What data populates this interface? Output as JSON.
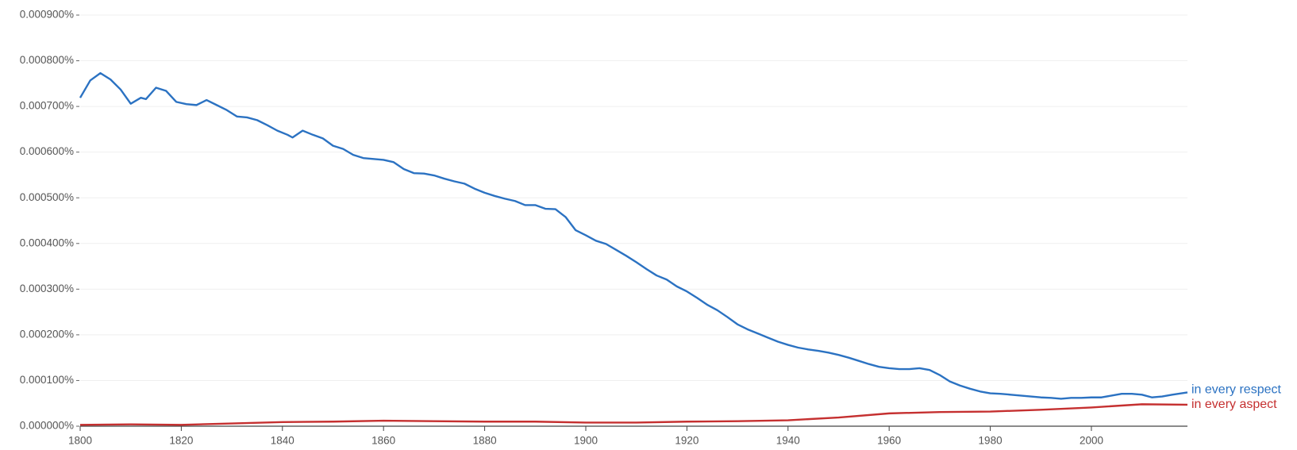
{
  "chart_data": {
    "type": "line",
    "xlim": [
      1800,
      2019
    ],
    "xticks": [
      1800,
      1820,
      1840,
      1860,
      1880,
      1900,
      1920,
      1940,
      1960,
      1980,
      2000
    ],
    "ylim": [
      0,
      0.0009
    ],
    "yticks": [
      {
        "value": 0,
        "label": "0.000000%"
      },
      {
        "value": 0.0001,
        "label": "0.000100%"
      },
      {
        "value": 0.0002,
        "label": "0.000200%"
      },
      {
        "value": 0.0003,
        "label": "0.000300%"
      },
      {
        "value": 0.0004,
        "label": "0.000400%"
      },
      {
        "value": 0.0005,
        "label": "0.000500%"
      },
      {
        "value": 0.0006,
        "label": "0.000600%"
      },
      {
        "value": 0.0007,
        "label": "0.000700%"
      },
      {
        "value": 0.0008,
        "label": "0.000800%"
      },
      {
        "value": 0.0009,
        "label": "0.000900%"
      }
    ],
    "grid": true,
    "series": [
      {
        "name": "in every respect",
        "color": "#2b72c2",
        "x": [
          1800,
          1802,
          1804,
          1806,
          1808,
          1810,
          1812,
          1813,
          1815,
          1817,
          1819,
          1821,
          1823,
          1825,
          1827,
          1829,
          1831,
          1833,
          1835,
          1837,
          1839,
          1841,
          1842,
          1844,
          1846,
          1848,
          1850,
          1852,
          1854,
          1856,
          1858,
          1860,
          1862,
          1864,
          1866,
          1868,
          1870,
          1872,
          1874,
          1876,
          1878,
          1880,
          1882,
          1884,
          1886,
          1888,
          1890,
          1892,
          1894,
          1896,
          1898,
          1900,
          1902,
          1904,
          1906,
          1908,
          1910,
          1912,
          1914,
          1916,
          1918,
          1920,
          1922,
          1924,
          1926,
          1928,
          1930,
          1932,
          1934,
          1936,
          1938,
          1940,
          1942,
          1944,
          1946,
          1948,
          1950,
          1952,
          1954,
          1956,
          1958,
          1960,
          1962,
          1964,
          1966,
          1968,
          1970,
          1972,
          1974,
          1976,
          1978,
          1980,
          1982,
          1984,
          1986,
          1988,
          1990,
          1992,
          1994,
          1996,
          1998,
          2000,
          2002,
          2004,
          2006,
          2008,
          2010,
          2012,
          2014,
          2016,
          2019
        ],
        "values": [
          0.000719,
          0.000757,
          0.000773,
          0.000759,
          0.000737,
          0.000706,
          0.000719,
          0.000716,
          0.000741,
          0.000734,
          0.00071,
          0.000705,
          0.000703,
          0.000714,
          0.000703,
          0.000692,
          0.000678,
          0.000676,
          0.00067,
          0.000659,
          0.000647,
          0.000638,
          0.000632,
          0.000647,
          0.000638,
          0.00063,
          0.000614,
          0.000607,
          0.000594,
          0.000587,
          0.000585,
          0.000583,
          0.000578,
          0.000563,
          0.000554,
          0.000553,
          0.000549,
          0.000542,
          0.000536,
          0.000531,
          0.00052,
          0.000511,
          0.000504,
          0.000498,
          0.000493,
          0.000484,
          0.000484,
          0.000476,
          0.000475,
          0.000458,
          0.000429,
          0.000418,
          0.000406,
          0.000399,
          0.000386,
          0.000373,
          0.000359,
          0.000344,
          0.00033,
          0.000321,
          0.000306,
          0.000295,
          0.000281,
          0.000266,
          0.000254,
          0.000239,
          0.000223,
          0.000212,
          0.000203,
          0.000194,
          0.000185,
          0.000178,
          0.000172,
          0.000168,
          0.000165,
          0.000161,
          0.000156,
          0.00015,
          0.000143,
          0.000136,
          0.00013,
          0.000127,
          0.000125,
          0.000125,
          0.000127,
          0.000123,
          0.000112,
          9.8e-05,
          8.9e-05,
          8.2e-05,
          7.6e-05,
          7.2e-05,
          7.1e-05,
          6.9e-05,
          6.7e-05,
          6.5e-05,
          6.3e-05,
          6.2e-05,
          6e-05,
          6.2e-05,
          6.2e-05,
          6.3e-05,
          6.3e-05,
          6.7e-05,
          7.1e-05,
          7.1e-05,
          6.9e-05,
          6.3e-05,
          6.5e-05,
          6.9e-05,
          7.4e-05
        ]
      },
      {
        "name": "in every aspect",
        "color": "#c53030",
        "x": [
          1800,
          1810,
          1820,
          1830,
          1840,
          1850,
          1860,
          1870,
          1880,
          1890,
          1900,
          1910,
          1920,
          1930,
          1940,
          1950,
          1960,
          1970,
          1980,
          1990,
          2000,
          2010,
          2019
        ],
        "values": [
          3e-06,
          4e-06,
          3e-06,
          6e-06,
          9e-06,
          1e-05,
          1.2e-05,
          1.1e-05,
          1e-05,
          1e-05,
          8e-06,
          8e-06,
          1e-05,
          1.1e-05,
          1.3e-05,
          1.9e-05,
          2.8e-05,
          3.1e-05,
          3.2e-05,
          3.6e-05,
          4.1e-05,
          4.8e-05,
          4.7e-05
        ]
      }
    ]
  }
}
